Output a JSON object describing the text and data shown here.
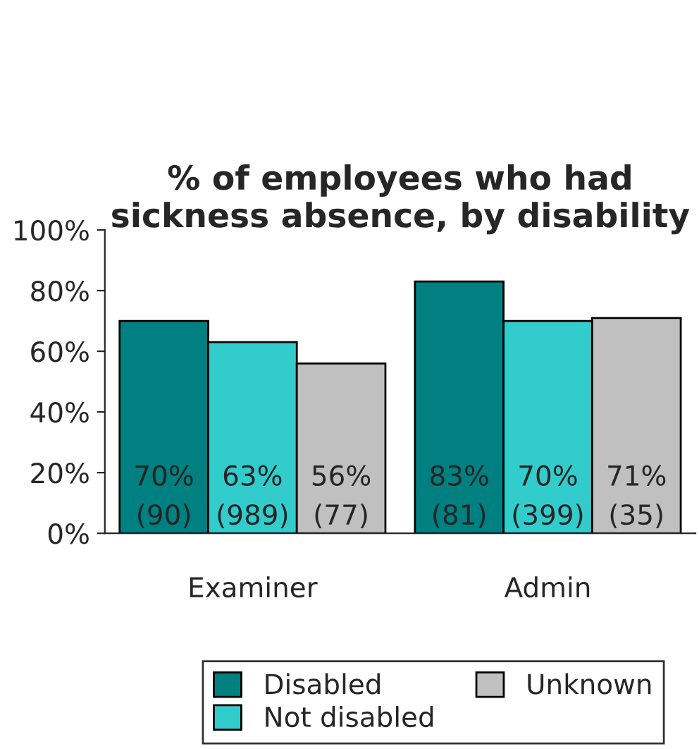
{
  "chart_data": {
    "type": "bar",
    "title": "% of employees who had sickness absence, by disability",
    "categories": [
      "Examiner",
      "Admin"
    ],
    "series": [
      {
        "name": "Disabled",
        "color": "#008080",
        "values": [
          70,
          83
        ],
        "value_labels": [
          "70%\n(90)",
          "83%\n(81)"
        ]
      },
      {
        "name": "Not disabled",
        "color": "#33cccc",
        "values": [
          63,
          70
        ],
        "value_labels": [
          "63%\n(989)",
          "70%\n(399)"
        ]
      },
      {
        "name": "Unknown",
        "color": "#c0c0c0",
        "values": [
          56,
          71
        ],
        "value_labels": [
          "56%\n(77)",
          "71%\n(35)"
        ]
      }
    ],
    "ylim": [
      0,
      100
    ],
    "yticks": [
      {
        "value": 0,
        "label": "0%"
      },
      {
        "value": 20,
        "label": "20%"
      },
      {
        "value": 40,
        "label": "40%"
      },
      {
        "value": 60,
        "label": "60%"
      },
      {
        "value": 80,
        "label": "80%"
      },
      {
        "value": 100,
        "label": "100%"
      }
    ],
    "legend": "bottom",
    "grid": false
  }
}
